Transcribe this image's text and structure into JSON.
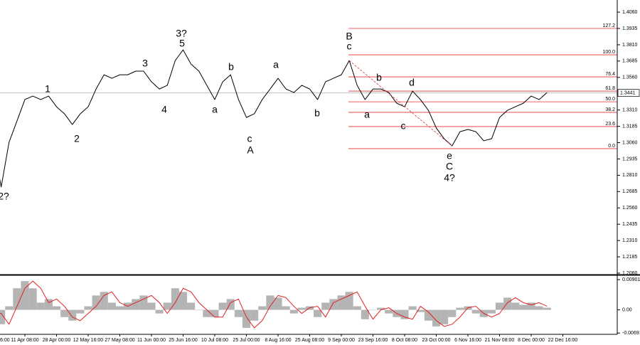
{
  "chart_data": [
    {
      "type": "line",
      "categories": [
        "6:00",
        null,
        null,
        null,
        "11 Apr 08:00",
        null,
        null,
        null,
        "28 Apr 00:00",
        null,
        null,
        null,
        "12 May 16:00",
        null,
        null,
        null,
        "27 May 08:00",
        null,
        null,
        null,
        "11 Jun 00:00",
        null,
        null,
        null,
        "25 Jun 16:00",
        null,
        null,
        null,
        "10 Jul 08:00",
        null,
        null,
        null,
        "25 Jul 00:00",
        null,
        null,
        null,
        "8 Aug 16:00",
        null,
        null,
        null,
        "25 Aug 08:00",
        null,
        null,
        null,
        "9 Sep 00:00",
        null,
        null,
        null,
        "23 Sep 16:00",
        null,
        null,
        null,
        "8 Oct 08:00",
        null,
        null,
        null,
        "23 Oct 00:00",
        null,
        null,
        null,
        "6 Nov 16:00",
        null,
        null,
        null,
        "21 Nov 08:00",
        null,
        null,
        null,
        "8 Dec 00:00",
        null,
        null,
        null,
        "22 Dec 16:00"
      ],
      "color": "#000000",
      "values": [
        1.3063,
        1.272,
        1.3063,
        1.3226,
        1.339,
        1.3417,
        1.339,
        1.3417,
        1.3335,
        1.3281,
        1.3199,
        1.3281,
        1.3335,
        1.3471,
        1.358,
        1.3553,
        1.358,
        1.358,
        1.3608,
        1.3608,
        1.3526,
        1.3471,
        1.3499,
        1.3689,
        1.3771,
        1.3662,
        1.3608,
        1.3499,
        1.339,
        1.3526,
        1.358,
        1.339,
        1.3253,
        1.3281,
        1.339,
        1.3471,
        1.3553,
        1.3471,
        1.3444,
        1.3499,
        1.3471,
        1.339,
        1.3526,
        1.3553,
        1.358,
        1.3689,
        1.3499,
        1.339,
        1.3471,
        1.3471,
        1.3444,
        1.3362,
        1.3335,
        1.3455,
        1.339,
        1.3308,
        1.3172,
        1.309,
        1.3035,
        1.3144,
        1.3161,
        1.3144,
        1.3074,
        1.309,
        1.3253,
        1.3308,
        1.3335,
        1.3362,
        1.3417,
        1.339,
        1.3444,
        null,
        null
      ],
      "ylim": [
        1.2049,
        1.4153
      ],
      "yticks": [
        {
          "value": 1.406,
          "label": "1.4060"
        },
        1.3935,
        {
          "value": 1.381,
          "label": "1.3810"
        },
        1.3685,
        {
          "value": 1.356,
          "label": "1.3560"
        },
        {
          "value": 1.331,
          "label": "1.3310"
        },
        1.3185,
        {
          "value": 1.306,
          "label": "1.3060"
        },
        1.2935,
        {
          "value": 1.281,
          "label": "1.2810"
        },
        1.2685,
        {
          "value": 1.256,
          "label": "1.2560"
        },
        1.2435,
        {
          "value": 1.231,
          "label": "1.2310"
        },
        1.2185,
        {
          "value": 1.206,
          "label": "1.2060"
        }
      ],
      "last_price": 1.3441,
      "fib_color": "#e03030",
      "fib_levels": [
        {
          "label": "127.2",
          "value": 1.3935
        },
        {
          "label": "100.0",
          "value": 1.3733
        },
        {
          "label": "76.4",
          "value": 1.3564
        },
        {
          "label": "61.8",
          "value": 1.3455
        },
        {
          "label": "50.0",
          "value": 1.3373
        },
        {
          "label": "38.2",
          "value": 1.3292
        },
        {
          "label": "23.6",
          "value": 1.3183
        },
        {
          "label": "0.0",
          "value": 1.3014
        }
      ],
      "annotations": [
        {
          "text": "2?",
          "color": "#1a1acc"
        },
        {
          "text": "1",
          "color": "#e03030"
        },
        {
          "text": "2",
          "color": "#e03030"
        },
        {
          "text": "3",
          "color": "#e03030"
        },
        {
          "text": "4",
          "color": "#e03030"
        },
        {
          "text": "3?",
          "color": "#1a1acc"
        },
        {
          "text": "5",
          "color": "#e03030"
        },
        {
          "text": "a",
          "color": "#e03030"
        },
        {
          "text": "b",
          "color": "#e03030"
        },
        {
          "text": "c",
          "color": "#e03030"
        },
        {
          "text": "A",
          "color": "#e03030"
        },
        {
          "text": "a",
          "color": "#e03030"
        },
        {
          "text": "b",
          "color": "#e03030"
        },
        {
          "text": "B",
          "color": "#e03030"
        },
        {
          "text": "c",
          "color": "#e03030"
        },
        {
          "text": "b",
          "color": "#e03030"
        },
        {
          "text": "a",
          "color": "#e03030"
        },
        {
          "text": "d",
          "color": "#e03030"
        },
        {
          "text": "c",
          "color": "#e03030"
        },
        {
          "text": "e",
          "color": "#e03030"
        },
        {
          "text": "C",
          "color": "#e03030"
        },
        {
          "text": "4?",
          "color": "#1a1acc"
        }
      ]
    },
    {
      "type": "bar",
      "series": [
        {
          "color": "#b4b4b4",
          "values": [
            -0.00107,
            -0.00429,
            0.00107,
            0.00644,
            0.00858,
            0.00644,
            0.00215,
            0.00322,
            0.00107,
            -0.00215,
            -0.00322,
            -0.00107,
            0.00107,
            0.00429,
            0.00536,
            0.00215,
            0.00107,
            0.00215,
            0.00322,
            0.00429,
            0.00215,
            -0.00107,
            0.00215,
            0.00644,
            0.00536,
            0.00215,
            0,
            -0.00215,
            -0.00215,
            0.00215,
            0.00322,
            -0.00215,
            -0.00536,
            -0.00322,
            0.00107,
            0.00429,
            0.00365,
            0.00107,
            -0.00107,
            0.00064,
            0.00107,
            -0.00215,
            0.00215,
            0.00322,
            0.00429,
            0.00536,
            0.00107,
            -0.00279,
            0,
            0.00064,
            -0.00107,
            -0.00215,
            -0.00279,
            0.00107,
            -0.00064,
            -0.00322,
            -0.00493,
            -0.00429,
            -0.00215,
            0.00064,
            0.00107,
            -0.00107,
            -0.00215,
            -0.00107,
            0.00215,
            0.00365,
            0.00215,
            0.0015,
            0.00215,
            0.00107,
            0.00064,
            null,
            null
          ]
        },
        {
          "type": "line",
          "color": "#e02020",
          "values": [
            -0.0005,
            -0.00107,
            -0.00429,
            0.00107,
            0.00644,
            0.00858,
            0.00644,
            0.00215,
            0.00322,
            0.00107,
            -0.00215,
            -0.00322,
            -0.00107,
            0.00107,
            0.00429,
            0.00536,
            0.00215,
            0.00107,
            0.00215,
            0.00322,
            0.00429,
            0.00215,
            -0.00107,
            0.00215,
            0.00644,
            0.00536,
            0.00215,
            0,
            -0.00215,
            -0.00215,
            0.00215,
            0.00322,
            -0.00215,
            -0.00536,
            -0.00322,
            0.00107,
            0.00429,
            0.00365,
            0.00107,
            -0.00107,
            0.00064,
            0.00107,
            -0.00215,
            0.00215,
            0.00322,
            0.00429,
            0.00536,
            0.00107,
            -0.00279,
            0,
            0.00064,
            -0.00107,
            -0.00215,
            -0.00279,
            0.00107,
            -0.00064,
            -0.00322,
            -0.00493,
            -0.00429,
            -0.00215,
            0.00064,
            0.00107,
            -0.00107,
            -0.00215,
            -0.00107,
            0.00215,
            0.00365,
            0.00215,
            0.0015,
            0.00215,
            0.00107,
            null,
            null
          ]
        }
      ],
      "ylim": [
        -0.0073,
        0.0101
      ],
      "yticks": [
        0.00901,
        {
          "value": 0,
          "label": "0.00"
        },
        -0.00691
      ]
    }
  ]
}
